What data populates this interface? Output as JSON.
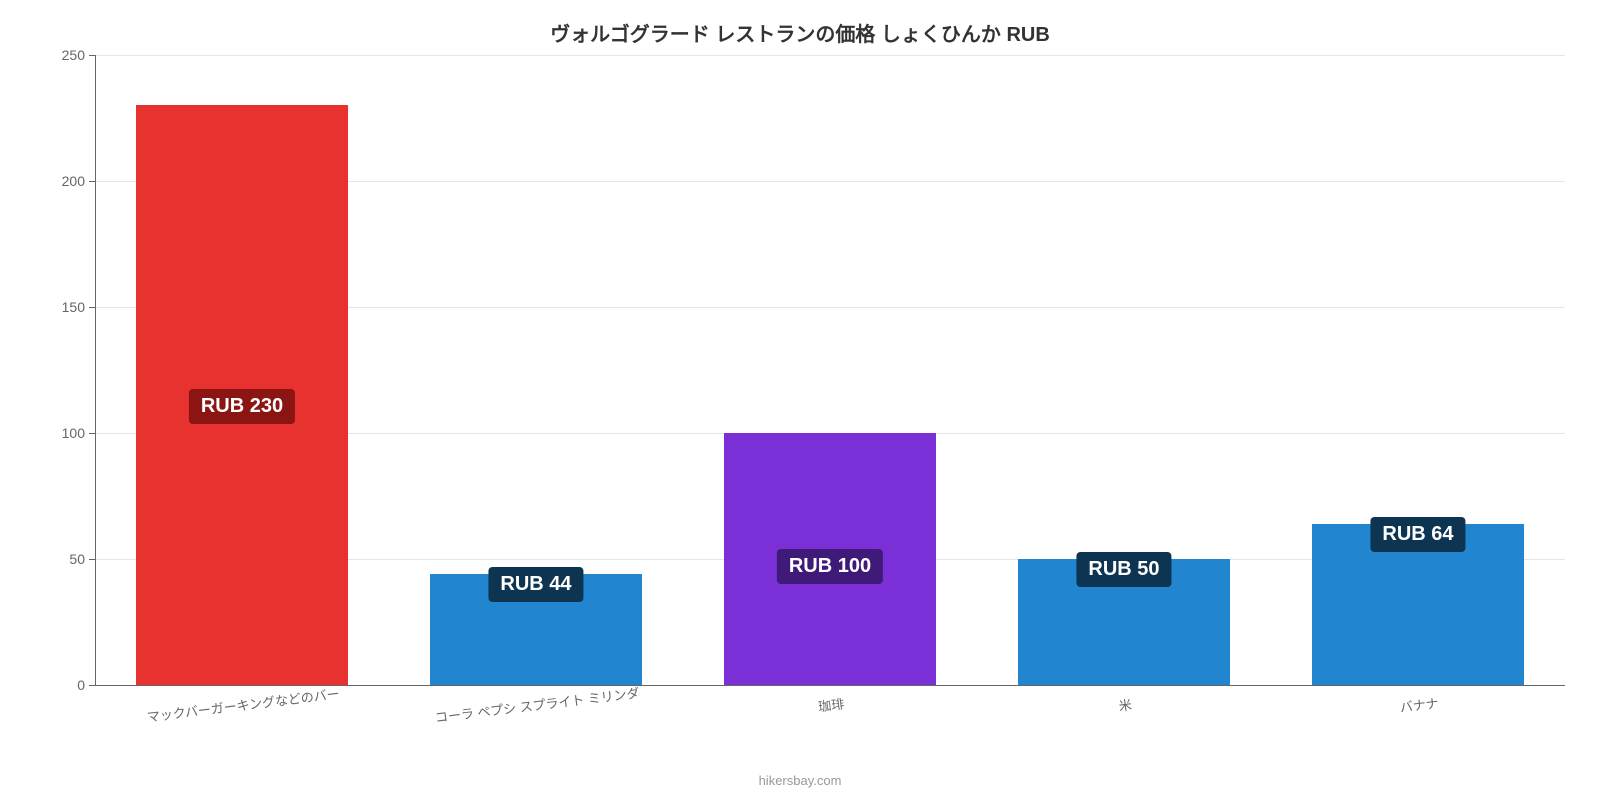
{
  "chart": {
    "type": "bar",
    "title": "ヴォルゴグラード レストランの価格 しょくひんか RUB",
    "title_fontsize": 20,
    "title_color": "#333333",
    "background_color": "#ffffff",
    "plot_bg": "#ffffff",
    "grid_color": "#e6e6e6",
    "axis_color": "#666666",
    "y": {
      "min": 0,
      "max": 250,
      "tick_step": 50,
      "ticks": [
        0,
        50,
        100,
        150,
        200,
        250
      ],
      "label_fontsize": 14,
      "label_color": "#666666"
    },
    "x": {
      "label_fontsize": 13,
      "label_color": "#666666",
      "rotation_deg": -7
    },
    "bar_width_ratio": 0.72,
    "value_badge": {
      "bg": "rgba(0,0,0,0.55)",
      "text_color": "#ffffff",
      "fontsize": 20,
      "radius": 4,
      "padding": "6px 12px"
    },
    "categories": [
      "マックバーガーキングなどのバー",
      "コーラ ペプシ スプライト ミリンダ",
      "珈琲",
      "米",
      "バナナ"
    ],
    "values": [
      230,
      44,
      100,
      50,
      64
    ],
    "value_labels": [
      "RUB 230",
      "RUB 44",
      "RUB 100",
      "RUB 50",
      "RUB 64"
    ],
    "bar_colors": [
      "#e8322f",
      "#2185d0",
      "#7b2fd6",
      "#2185d0",
      "#2185d0"
    ],
    "badge_bg_colors": [
      "#8a1512",
      "#0d3551",
      "#3f1a78",
      "#0d3551",
      "#0d3551"
    ],
    "attribution": "hikersbay.com",
    "attribution_color": "#999999",
    "attribution_fontsize": 13
  }
}
